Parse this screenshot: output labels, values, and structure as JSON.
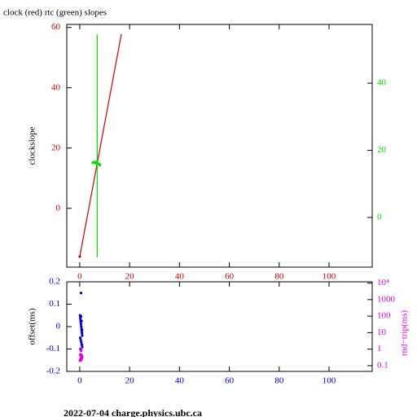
{
  "chart_data": [
    {
      "type": "line",
      "title": "clock (red) rtc (green) slopes",
      "ylabel": "clockslope",
      "xlim": [
        -5.2,
        117.3
      ],
      "xticks": [
        0,
        20,
        40,
        60,
        80,
        100
      ],
      "xtick_color": "#cc0000",
      "ylim": [
        -19.5,
        61
      ],
      "yticks": [
        0,
        20,
        40,
        60
      ],
      "ytick_color": "#cc0000",
      "y2lim": [
        -14.8,
        57.5
      ],
      "y2ticks": [
        0,
        20,
        40
      ],
      "y2tick_color": "#00dd00",
      "y2log": false,
      "series": [
        {
          "mode": "line",
          "color": "#cc0000",
          "x": [
            0,
            16.7
          ],
          "values": [
            -16,
            57.8
          ]
        },
        {
          "mode": "markers",
          "color": "#cc0000",
          "x": [
            0
          ],
          "values": [
            -16
          ]
        },
        {
          "mode": "line",
          "color": "#00dd00",
          "axis": "y2",
          "x": [
            7,
            7
          ],
          "values": [
            -11.9,
            54.5
          ]
        },
        {
          "mode": "markers",
          "color": "#00dd00",
          "axis": "y2",
          "x": [
            5.2,
            5.8,
            6.3,
            6.8,
            7.3,
            7.8,
            8.1
          ],
          "values": [
            16.3,
            16.5,
            16.2,
            16.6,
            16.0,
            15.9,
            15.6
          ]
        }
      ]
    },
    {
      "type": "scatter",
      "ylabel": "offset(ms)",
      "y2label": "rnd−trip(ms)",
      "xlim": [
        -5.2,
        117.3
      ],
      "xticks": [
        0,
        20,
        40,
        60,
        80,
        100
      ],
      "xtick_color": "#0000cc",
      "ylim": [
        -0.2,
        0.2
      ],
      "yticks": [
        0.2,
        0.1,
        0,
        -0.1,
        -0.2
      ],
      "ytick_color": "#0000cc",
      "y2lim": [
        0.045,
        12000
      ],
      "y2log": true,
      "y2tick_color": "#dd00dd",
      "y2ticks": [
        {
          "value": 10000,
          "label": "10⁴"
        },
        1000,
        100,
        10,
        1,
        0.1
      ],
      "series": [
        {
          "mode": "markers",
          "color": "#0000cc",
          "x": [
            0.1,
            0.2,
            0.3,
            0.4,
            0.5,
            0.6,
            0.7,
            0.8,
            0.9,
            1,
            0.2,
            0.4,
            0.6,
            0.8,
            1,
            0.3,
            0.5,
            0.7,
            0.9,
            0.5
          ],
          "values": [
            0.05,
            0.04,
            0.03,
            0.02,
            0.01,
            0,
            -0.01,
            -0.02,
            -0.03,
            -0.04,
            -0.05,
            -0.06,
            -0.07,
            -0.08,
            -0.09,
            -0.1,
            0.045,
            0.025,
            -0.015,
            0.15
          ]
        },
        {
          "mode": "markers",
          "color": "#dd00dd",
          "axis": "y2",
          "x": [
            0.1,
            0.3,
            0.5,
            0.7,
            0.9,
            0.2,
            0.4,
            0.6,
            0.8,
            1,
            0.5,
            0.7
          ],
          "values": [
            0.2,
            0.25,
            0.3,
            0.35,
            0.4,
            0.45,
            0.5,
            0.22,
            0.28,
            0.33,
            0.8,
            1.1
          ]
        }
      ]
    }
  ],
  "footer": "2022-07-04 charge.physics.ubc.ca"
}
